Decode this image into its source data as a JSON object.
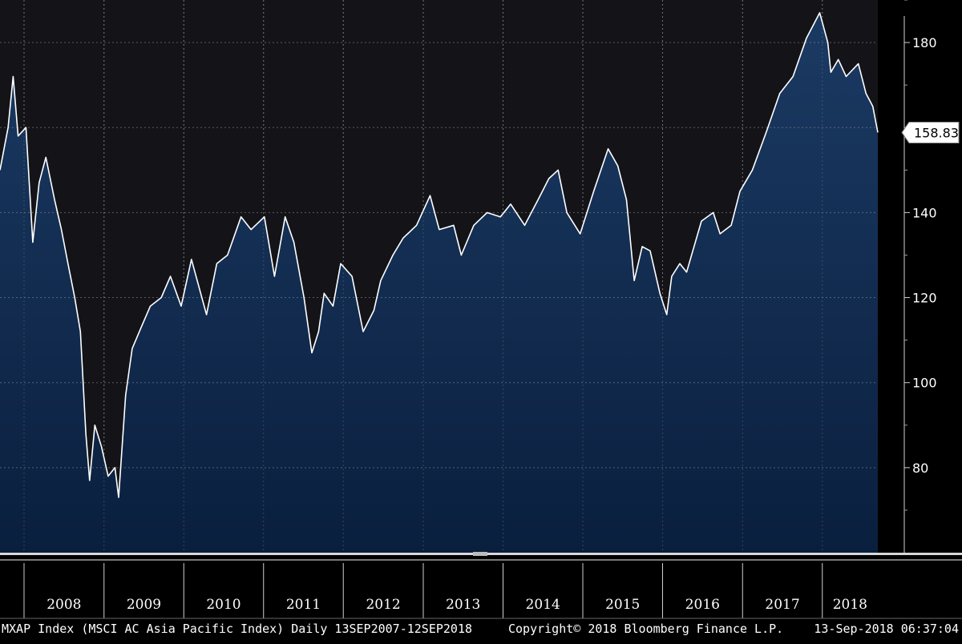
{
  "colors": {
    "background": "#000000",
    "plot_background": "#141418",
    "area_top": "#1b3a63",
    "area_bottom": "#0a1f3e",
    "line": "#ffffff",
    "grid": "#8a8a8a"
  },
  "chart_data": {
    "type": "area",
    "title": "",
    "xlabel": "",
    "ylabel": "",
    "ylim": [
      60,
      190
    ],
    "y_ticks": [
      80,
      100,
      120,
      140,
      160,
      180
    ],
    "x_ticks": [
      "2008",
      "2009",
      "2010",
      "2011",
      "2012",
      "2013",
      "2014",
      "2015",
      "2016",
      "2017",
      "2018"
    ],
    "x_start": "2007-09-13",
    "x_end": "2018-09-12",
    "grid": true,
    "last_value": "158.83",
    "series": [
      {
        "x": [
          "2007-09-13",
          "2007-10-20",
          "2007-11-12",
          "2007-12-05",
          "2008-01-10",
          "2008-02-10",
          "2008-03-10",
          "2008-04-10",
          "2008-05-20",
          "2008-06-20",
          "2008-07-20",
          "2008-08-20",
          "2008-09-15",
          "2008-10-10",
          "2008-10-27",
          "2008-11-20",
          "2008-12-20",
          "2009-01-20",
          "2009-02-20",
          "2009-03-09",
          "2009-04-10",
          "2009-05-10",
          "2009-06-20",
          "2009-08-01",
          "2009-09-20",
          "2009-11-01",
          "2009-12-20",
          "2010-02-05",
          "2010-04-15",
          "2010-06-01",
          "2010-07-20",
          "2010-09-20",
          "2010-11-05",
          "2011-01-05",
          "2011-02-20",
          "2011-04-10",
          "2011-05-20",
          "2011-07-05",
          "2011-08-10",
          "2011-09-10",
          "2011-10-05",
          "2011-11-15",
          "2011-12-20",
          "2012-02-10",
          "2012-04-01",
          "2012-05-20",
          "2012-06-20",
          "2012-08-15",
          "2012-10-01",
          "2012-12-01",
          "2013-02-01",
          "2013-03-15",
          "2013-05-20",
          "2013-06-24",
          "2013-08-20",
          "2013-10-20",
          "2013-12-20",
          "2014-02-05",
          "2014-04-10",
          "2014-06-10",
          "2014-07-30",
          "2014-09-10",
          "2014-10-20",
          "2014-12-20",
          "2015-02-20",
          "2015-04-27",
          "2015-06-10",
          "2015-07-20",
          "2015-08-24",
          "2015-09-30",
          "2015-11-05",
          "2015-12-20",
          "2016-01-20",
          "2016-02-12",
          "2016-03-20",
          "2016-04-20",
          "2016-06-27",
          "2016-08-20",
          "2016-09-20",
          "2016-11-10",
          "2016-12-20",
          "2017-02-15",
          "2017-04-20",
          "2017-06-20",
          "2017-08-20",
          "2017-10-20",
          "2017-12-20",
          "2018-01-26",
          "2018-02-09",
          "2018-03-15",
          "2018-04-20",
          "2018-06-15",
          "2018-07-20",
          "2018-08-20",
          "2018-09-12"
        ],
        "values": [
          150,
          160,
          172,
          158,
          160,
          133,
          147,
          153,
          143,
          136,
          128,
          120,
          112,
          88,
          77,
          90,
          85,
          78,
          80,
          73,
          97,
          108,
          113,
          118,
          120,
          125,
          118,
          129,
          116,
          128,
          130,
          139,
          136,
          139,
          125,
          139,
          133,
          120,
          107,
          112,
          121,
          118,
          128,
          125,
          112,
          117,
          124,
          130,
          134,
          137,
          144,
          136,
          137,
          130,
          137,
          140,
          139,
          142,
          137,
          143,
          148,
          150,
          140,
          135,
          145,
          155,
          151,
          143,
          124,
          132,
          131,
          121,
          116,
          125,
          128,
          126,
          138,
          140,
          135,
          137,
          145,
          150,
          159,
          168,
          172,
          181,
          187,
          180,
          173,
          176,
          172,
          175,
          168,
          165,
          158.83
        ]
      }
    ]
  },
  "footer": {
    "left": "MXAP Index (MSCI AC Asia Pacific Index)  Daily 13SEP2007-12SEP2018",
    "center": "Copyright© 2018 Bloomberg Finance L.P.",
    "right": "13-Sep-2018 06:37:04"
  }
}
